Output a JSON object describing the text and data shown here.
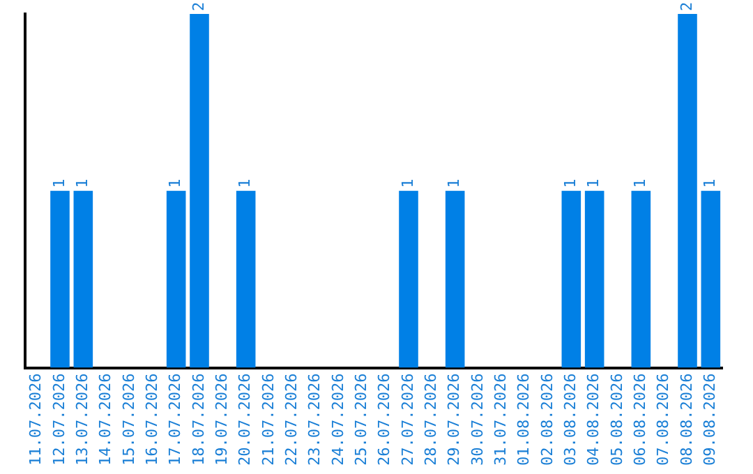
{
  "chart_data": {
    "type": "bar",
    "categories": [
      "11.07.2026",
      "12.07.2026",
      "13.07.2026",
      "14.07.2026",
      "15.07.2026",
      "16.07.2026",
      "17.07.2026",
      "18.07.2026",
      "19.07.2026",
      "20.07.2026",
      "21.07.2026",
      "22.07.2026",
      "23.07.2026",
      "24.07.2026",
      "25.07.2026",
      "26.07.2026",
      "27.07.2026",
      "28.07.2026",
      "29.07.2026",
      "30.07.2026",
      "31.07.2026",
      "01.08.2026",
      "02.08.2026",
      "03.08.2026",
      "04.08.2026",
      "05.08.2026",
      "06.08.2026",
      "07.08.2026",
      "08.08.2026",
      "09.08.2026"
    ],
    "values": [
      0,
      1,
      1,
      0,
      0,
      0,
      1,
      2,
      0,
      1,
      0,
      0,
      0,
      0,
      0,
      0,
      1,
      0,
      1,
      0,
      0,
      0,
      0,
      1,
      1,
      0,
      1,
      0,
      2,
      1
    ],
    "value_labels": [
      null,
      "1",
      "1",
      null,
      null,
      null,
      "1",
      "2",
      null,
      "1",
      null,
      null,
      null,
      null,
      null,
      null,
      "1",
      null,
      "1",
      null,
      null,
      null,
      null,
      "1",
      "1",
      null,
      "1",
      null,
      "2",
      "1"
    ],
    "color": "#0080e6",
    "grid": false,
    "legend": false,
    "tick_labels": "x"
  }
}
